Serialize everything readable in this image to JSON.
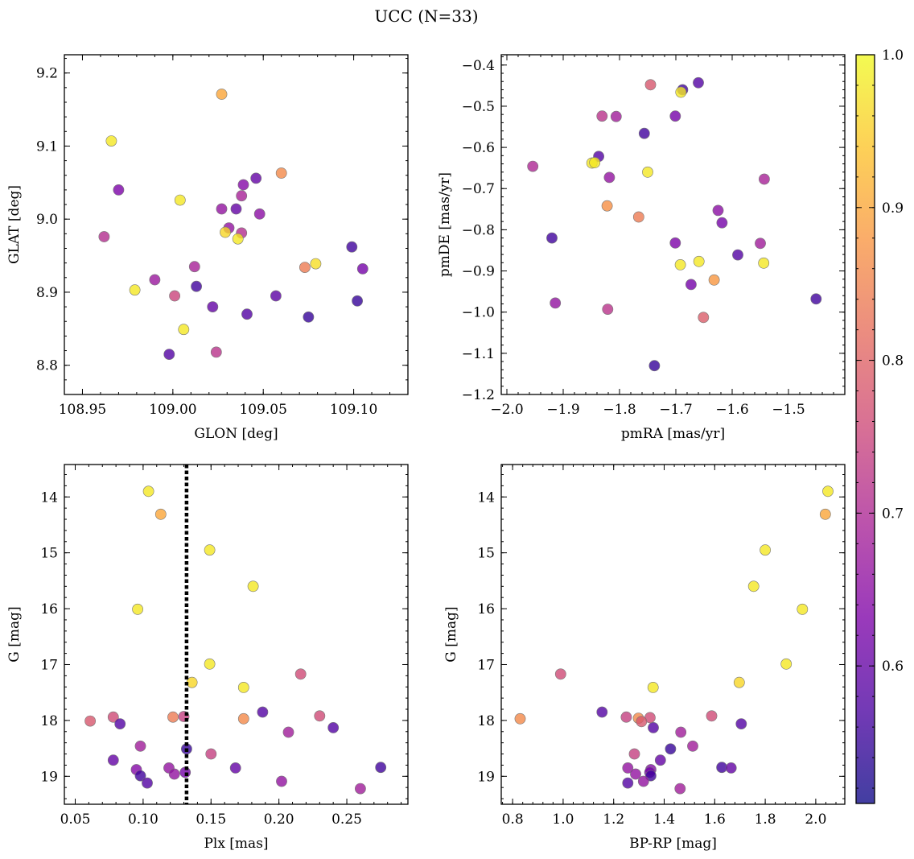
{
  "figure": {
    "title": "UCC (N=33)"
  },
  "colorbar": {
    "colormap": "plasma",
    "range": [
      0.51,
      1.0
    ],
    "ticks": [
      0.6,
      0.7,
      0.8,
      0.9,
      1.0
    ],
    "tick_labels": [
      "0.6",
      "0.7",
      "0.8",
      "0.9",
      "1.0"
    ]
  },
  "chart_data": [
    {
      "type": "scatter",
      "xlabel": "GLON [deg]",
      "ylabel": "GLAT [deg]",
      "xlim": [
        108.94,
        109.13
      ],
      "ylim": [
        8.76,
        9.225
      ],
      "y_inverted": false,
      "xticks": [
        108.95,
        109.0,
        109.05,
        109.1
      ],
      "xtick_labels": [
        "108.95",
        "109.00",
        "109.05",
        "109.10"
      ],
      "yticks": [
        8.8,
        8.9,
        9.0,
        9.1,
        9.2
      ],
      "ytick_labels": [
        "8.8",
        "8.9",
        "9.0",
        "9.1",
        "9.2"
      ],
      "points": [
        {
          "x": 109.027,
          "y": 9.171,
          "c": 0.9
        },
        {
          "x": 108.966,
          "y": 9.107,
          "c": 0.98
        },
        {
          "x": 109.06,
          "y": 9.063,
          "c": 0.86
        },
        {
          "x": 109.046,
          "y": 9.056,
          "c": 0.6
        },
        {
          "x": 109.039,
          "y": 9.047,
          "c": 0.64
        },
        {
          "x": 108.97,
          "y": 9.04,
          "c": 0.63
        },
        {
          "x": 109.038,
          "y": 9.032,
          "c": 0.69
        },
        {
          "x": 109.004,
          "y": 9.026,
          "c": 0.98
        },
        {
          "x": 109.027,
          "y": 9.014,
          "c": 0.66
        },
        {
          "x": 109.035,
          "y": 9.014,
          "c": 0.6
        },
        {
          "x": 109.048,
          "y": 9.007,
          "c": 0.65
        },
        {
          "x": 109.031,
          "y": 8.988,
          "c": 0.66
        },
        {
          "x": 109.029,
          "y": 8.982,
          "c": 0.96
        },
        {
          "x": 109.038,
          "y": 8.981,
          "c": 0.71
        },
        {
          "x": 108.962,
          "y": 8.976,
          "c": 0.71
        },
        {
          "x": 109.036,
          "y": 8.973,
          "c": 0.98
        },
        {
          "x": 109.099,
          "y": 8.962,
          "c": 0.56
        },
        {
          "x": 109.079,
          "y": 8.939,
          "c": 0.97
        },
        {
          "x": 109.012,
          "y": 8.935,
          "c": 0.69
        },
        {
          "x": 109.073,
          "y": 8.934,
          "c": 0.84
        },
        {
          "x": 109.105,
          "y": 8.932,
          "c": 0.62
        },
        {
          "x": 108.99,
          "y": 8.917,
          "c": 0.67
        },
        {
          "x": 109.013,
          "y": 8.908,
          "c": 0.56
        },
        {
          "x": 108.979,
          "y": 8.903,
          "c": 0.98
        },
        {
          "x": 109.001,
          "y": 8.895,
          "c": 0.75
        },
        {
          "x": 109.057,
          "y": 8.895,
          "c": 0.59
        },
        {
          "x": 109.102,
          "y": 8.888,
          "c": 0.55
        },
        {
          "x": 109.022,
          "y": 8.88,
          "c": 0.6
        },
        {
          "x": 109.041,
          "y": 8.87,
          "c": 0.58
        },
        {
          "x": 109.075,
          "y": 8.866,
          "c": 0.55
        },
        {
          "x": 109.006,
          "y": 8.849,
          "c": 0.98
        },
        {
          "x": 109.024,
          "y": 8.818,
          "c": 0.72
        },
        {
          "x": 108.998,
          "y": 8.815,
          "c": 0.58
        }
      ]
    },
    {
      "type": "scatter",
      "xlabel": "pmRA [mas/yr]",
      "ylabel": "pmDE [mas/yr]",
      "xlim": [
        -2.01,
        -1.4
      ],
      "ylim": [
        -1.2,
        -0.375
      ],
      "y_inverted": false,
      "xticks": [
        -2.0,
        -1.9,
        -1.8,
        -1.7,
        -1.6,
        -1.5
      ],
      "xtick_labels": [
        "−2.0",
        "−1.9",
        "−1.8",
        "−1.7",
        "−1.6",
        "−1.5"
      ],
      "yticks": [
        -1.2,
        -1.1,
        -1.0,
        -0.9,
        -0.8,
        -0.7,
        -0.6,
        -0.5,
        -0.4
      ],
      "ytick_labels": [
        "−1.2",
        "−1.1",
        "−1.0",
        "−0.9",
        "−0.8",
        "−0.7",
        "−0.6",
        "−0.5",
        "−0.4"
      ],
      "points": [
        {
          "x": -1.745,
          "y": -0.448,
          "c": 0.78
        },
        {
          "x": -1.66,
          "y": -0.443,
          "c": 0.58
        },
        {
          "x": -1.688,
          "y": -0.46,
          "c": 0.56
        },
        {
          "x": -1.691,
          "y": -0.466,
          "c": 0.98
        },
        {
          "x": -1.831,
          "y": -0.524,
          "c": 0.72
        },
        {
          "x": -1.806,
          "y": -0.525,
          "c": 0.68
        },
        {
          "x": -1.701,
          "y": -0.524,
          "c": 0.62
        },
        {
          "x": -1.756,
          "y": -0.566,
          "c": 0.56
        },
        {
          "x": -1.837,
          "y": -0.622,
          "c": 0.58
        },
        {
          "x": -1.849,
          "y": -0.638,
          "c": 0.98
        },
        {
          "x": -1.844,
          "y": -0.637,
          "c": 0.98
        },
        {
          "x": -1.954,
          "y": -0.646,
          "c": 0.7
        },
        {
          "x": -1.75,
          "y": -0.66,
          "c": 0.98
        },
        {
          "x": -1.818,
          "y": -0.673,
          "c": 0.66
        },
        {
          "x": -1.543,
          "y": -0.677,
          "c": 0.69
        },
        {
          "x": -1.822,
          "y": -0.742,
          "c": 0.87
        },
        {
          "x": -1.625,
          "y": -0.753,
          "c": 0.65
        },
        {
          "x": -1.766,
          "y": -0.769,
          "c": 0.84
        },
        {
          "x": -1.618,
          "y": -0.783,
          "c": 0.62
        },
        {
          "x": -1.92,
          "y": -0.82,
          "c": 0.56
        },
        {
          "x": -1.701,
          "y": -0.832,
          "c": 0.63
        },
        {
          "x": -1.55,
          "y": -0.833,
          "c": 0.68
        },
        {
          "x": -1.59,
          "y": -0.861,
          "c": 0.58
        },
        {
          "x": -1.659,
          "y": -0.877,
          "c": 0.98
        },
        {
          "x": -1.544,
          "y": -0.881,
          "c": 0.98
        },
        {
          "x": -1.692,
          "y": -0.885,
          "c": 0.98
        },
        {
          "x": -1.673,
          "y": -0.933,
          "c": 0.62
        },
        {
          "x": -1.632,
          "y": -0.922,
          "c": 0.88
        },
        {
          "x": -1.451,
          "y": -0.968,
          "c": 0.56
        },
        {
          "x": -1.914,
          "y": -0.978,
          "c": 0.66
        },
        {
          "x": -1.821,
          "y": -0.993,
          "c": 0.72
        },
        {
          "x": -1.651,
          "y": -1.013,
          "c": 0.79
        },
        {
          "x": -1.738,
          "y": -1.13,
          "c": 0.55
        }
      ]
    },
    {
      "type": "scatter",
      "xlabel": "Plx [mas]",
      "ylabel": "G [mag]",
      "xlim": [
        0.042,
        0.295
      ],
      "ylim": [
        19.5,
        13.42
      ],
      "y_inverted": true,
      "vline": {
        "x": 0.132,
        "style": "dotted",
        "color": "#000000"
      },
      "xticks": [
        0.05,
        0.1,
        0.15,
        0.2,
        0.25
      ],
      "xtick_labels": [
        "0.05",
        "0.10",
        "0.15",
        "0.20",
        "0.25"
      ],
      "yticks": [
        14,
        15,
        16,
        17,
        18,
        19
      ],
      "ytick_labels": [
        "14",
        "15",
        "16",
        "17",
        "18",
        "19"
      ],
      "points": [
        {
          "x": 0.104,
          "y": 13.9,
          "c": 0.98
        },
        {
          "x": 0.113,
          "y": 14.31,
          "c": 0.9
        },
        {
          "x": 0.149,
          "y": 14.95,
          "c": 0.98
        },
        {
          "x": 0.181,
          "y": 15.6,
          "c": 0.98
        },
        {
          "x": 0.096,
          "y": 16.01,
          "c": 0.98
        },
        {
          "x": 0.149,
          "y": 16.99,
          "c": 0.98
        },
        {
          "x": 0.216,
          "y": 17.17,
          "c": 0.76
        },
        {
          "x": 0.136,
          "y": 17.32,
          "c": 0.96
        },
        {
          "x": 0.174,
          "y": 17.41,
          "c": 0.98
        },
        {
          "x": 0.188,
          "y": 17.85,
          "c": 0.58
        },
        {
          "x": 0.23,
          "y": 17.92,
          "c": 0.76
        },
        {
          "x": 0.078,
          "y": 17.94,
          "c": 0.76
        },
        {
          "x": 0.122,
          "y": 17.94,
          "c": 0.84
        },
        {
          "x": 0.13,
          "y": 17.93,
          "c": 0.74
        },
        {
          "x": 0.174,
          "y": 17.97,
          "c": 0.86
        },
        {
          "x": 0.061,
          "y": 18.01,
          "c": 0.78
        },
        {
          "x": 0.083,
          "y": 18.06,
          "c": 0.58
        },
        {
          "x": 0.24,
          "y": 18.13,
          "c": 0.58
        },
        {
          "x": 0.207,
          "y": 18.21,
          "c": 0.68
        },
        {
          "x": 0.098,
          "y": 18.46,
          "c": 0.68
        },
        {
          "x": 0.132,
          "y": 18.51,
          "c": 0.55
        },
        {
          "x": 0.15,
          "y": 18.6,
          "c": 0.74
        },
        {
          "x": 0.078,
          "y": 18.71,
          "c": 0.6
        },
        {
          "x": 0.275,
          "y": 18.84,
          "c": 0.56
        },
        {
          "x": 0.168,
          "y": 18.85,
          "c": 0.6
        },
        {
          "x": 0.119,
          "y": 18.85,
          "c": 0.66
        },
        {
          "x": 0.095,
          "y": 18.88,
          "c": 0.64
        },
        {
          "x": 0.131,
          "y": 18.93,
          "c": 0.62
        },
        {
          "x": 0.123,
          "y": 18.96,
          "c": 0.66
        },
        {
          "x": 0.098,
          "y": 18.99,
          "c": 0.56
        },
        {
          "x": 0.202,
          "y": 19.09,
          "c": 0.66
        },
        {
          "x": 0.103,
          "y": 19.12,
          "c": 0.58
        },
        {
          "x": 0.26,
          "y": 19.22,
          "c": 0.68
        }
      ]
    },
    {
      "type": "scatter",
      "xlabel": "BP-RP [mag]",
      "ylabel": "G [mag]",
      "xlim": [
        0.755,
        2.115
      ],
      "ylim": [
        19.5,
        13.42
      ],
      "y_inverted": true,
      "xticks": [
        0.8,
        1.0,
        1.2,
        1.4,
        1.6,
        1.8,
        2.0
      ],
      "xtick_labels": [
        "0.8",
        "1.0",
        "1.2",
        "1.4",
        "1.6",
        "1.8",
        "2.0"
      ],
      "yticks": [
        14,
        15,
        16,
        17,
        18,
        19
      ],
      "ytick_labels": [
        "14",
        "15",
        "16",
        "17",
        "18",
        "19"
      ],
      "points": [
        {
          "x": 2.048,
          "y": 13.9,
          "c": 0.98
        },
        {
          "x": 2.038,
          "y": 14.31,
          "c": 0.9
        },
        {
          "x": 1.8,
          "y": 14.95,
          "c": 0.98
        },
        {
          "x": 1.754,
          "y": 15.6,
          "c": 0.98
        },
        {
          "x": 1.947,
          "y": 16.01,
          "c": 0.98
        },
        {
          "x": 1.883,
          "y": 16.99,
          "c": 0.98
        },
        {
          "x": 0.99,
          "y": 17.17,
          "c": 0.76
        },
        {
          "x": 1.697,
          "y": 17.32,
          "c": 0.96
        },
        {
          "x": 1.356,
          "y": 17.41,
          "c": 0.98
        },
        {
          "x": 1.154,
          "y": 17.85,
          "c": 0.58
        },
        {
          "x": 1.588,
          "y": 17.92,
          "c": 0.76
        },
        {
          "x": 1.25,
          "y": 17.94,
          "c": 0.74
        },
        {
          "x": 1.298,
          "y": 17.96,
          "c": 0.86
        },
        {
          "x": 1.344,
          "y": 17.95,
          "c": 0.76
        },
        {
          "x": 0.83,
          "y": 17.97,
          "c": 0.86
        },
        {
          "x": 1.31,
          "y": 18.02,
          "c": 0.78
        },
        {
          "x": 1.705,
          "y": 18.06,
          "c": 0.58
        },
        {
          "x": 1.357,
          "y": 18.13,
          "c": 0.58
        },
        {
          "x": 1.466,
          "y": 18.21,
          "c": 0.68
        },
        {
          "x": 1.513,
          "y": 18.46,
          "c": 0.68
        },
        {
          "x": 1.425,
          "y": 18.51,
          "c": 0.55
        },
        {
          "x": 1.282,
          "y": 18.6,
          "c": 0.74
        },
        {
          "x": 1.385,
          "y": 18.71,
          "c": 0.6
        },
        {
          "x": 1.628,
          "y": 18.84,
          "c": 0.56
        },
        {
          "x": 1.665,
          "y": 18.85,
          "c": 0.6
        },
        {
          "x": 1.256,
          "y": 18.85,
          "c": 0.66
        },
        {
          "x": 1.347,
          "y": 18.88,
          "c": 0.64
        },
        {
          "x": 1.343,
          "y": 18.93,
          "c": 0.62
        },
        {
          "x": 1.287,
          "y": 18.96,
          "c": 0.66
        },
        {
          "x": 1.347,
          "y": 18.99,
          "c": 0.56
        },
        {
          "x": 1.318,
          "y": 19.09,
          "c": 0.66
        },
        {
          "x": 1.256,
          "y": 19.12,
          "c": 0.58
        },
        {
          "x": 1.463,
          "y": 19.22,
          "c": 0.68
        }
      ]
    }
  ]
}
